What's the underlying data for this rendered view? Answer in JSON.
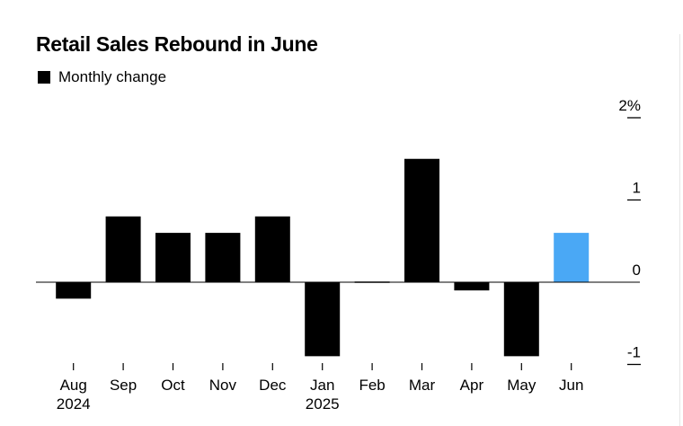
{
  "chart_data": {
    "type": "bar",
    "title": "Retail Sales Rebound in June",
    "legend": [
      {
        "label": "Monthly change",
        "color": "#000000"
      }
    ],
    "categories": [
      "Aug",
      "Sep",
      "Oct",
      "Nov",
      "Dec",
      "Jan",
      "Feb",
      "Mar",
      "Apr",
      "May",
      "Jun"
    ],
    "category_years": [
      "2024",
      "",
      "",
      "",
      "",
      "2025",
      "",
      "",
      "",
      "",
      ""
    ],
    "values": [
      -0.2,
      0.8,
      0.6,
      0.6,
      0.8,
      -0.9,
      0.0,
      1.5,
      -0.1,
      -0.9,
      0.6
    ],
    "bar_colors": [
      "#000000",
      "#000000",
      "#000000",
      "#000000",
      "#000000",
      "#000000",
      "#000000",
      "#000000",
      "#000000",
      "#000000",
      "#4aa8f5"
    ],
    "ylim": [
      -1,
      2
    ],
    "yticks": [
      {
        "value": 2,
        "label": "2%"
      },
      {
        "value": 1,
        "label": "1"
      },
      {
        "value": 0,
        "label": "0"
      },
      {
        "value": -1,
        "label": "-1"
      }
    ],
    "xlabel": "",
    "ylabel": "",
    "grid": false,
    "legend_position": "top-left"
  }
}
